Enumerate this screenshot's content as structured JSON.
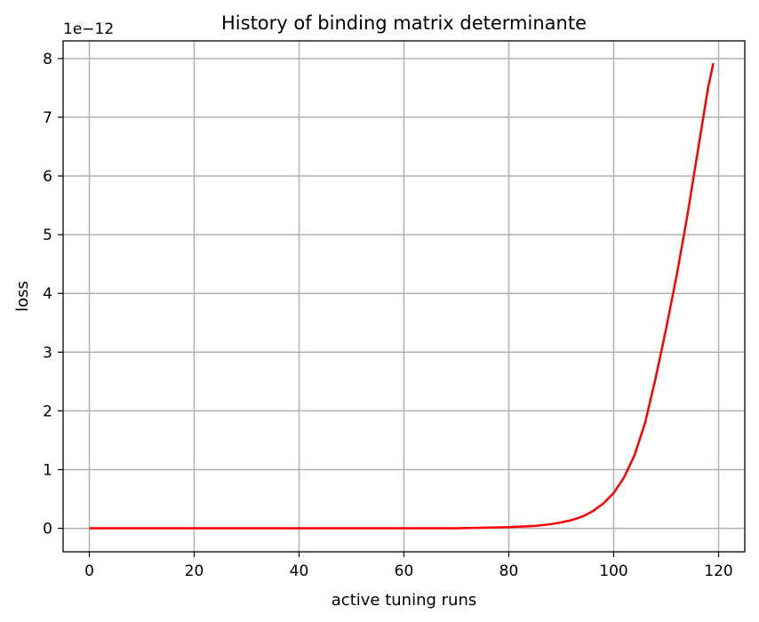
{
  "chart_data": {
    "type": "line",
    "title": "History of binding matrix determinante",
    "xlabel": "active tuning runs",
    "ylabel": "loss",
    "y_offset_label": "1e−12",
    "xlim": [
      -5,
      125
    ],
    "ylim": [
      -0.4,
      8.3
    ],
    "xticks": [
      0,
      20,
      40,
      60,
      80,
      100,
      120
    ],
    "yticks": [
      0,
      1,
      2,
      3,
      4,
      5,
      6,
      7,
      8
    ],
    "grid": true,
    "series": [
      {
        "color": "#ff0000",
        "x": [
          0,
          10,
          20,
          30,
          40,
          50,
          60,
          70,
          75,
          80,
          85,
          88,
          90,
          92,
          94,
          96,
          98,
          100,
          102,
          104,
          106,
          108,
          110,
          112,
          114,
          116,
          118,
          119
        ],
        "y": [
          0.0,
          0.0,
          0.0,
          0.0,
          0.0,
          0.0,
          0.0,
          0.0,
          0.01,
          0.02,
          0.04,
          0.07,
          0.1,
          0.14,
          0.2,
          0.29,
          0.42,
          0.6,
          0.87,
          1.25,
          1.8,
          2.56,
          3.4,
          4.3,
          5.3,
          6.4,
          7.5,
          7.92
        ]
      }
    ]
  }
}
